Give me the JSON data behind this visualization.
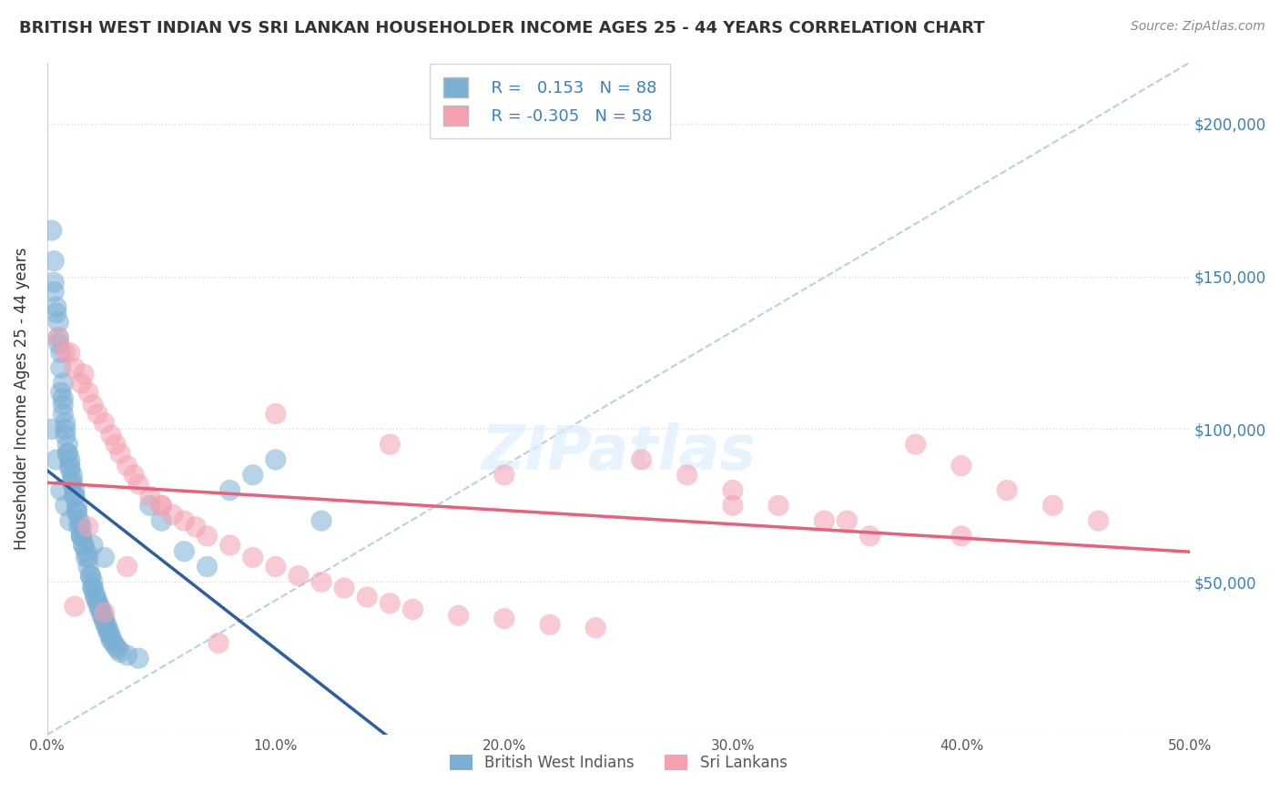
{
  "title": "BRITISH WEST INDIAN VS SRI LANKAN HOUSEHOLDER INCOME AGES 25 - 44 YEARS CORRELATION CHART",
  "source": "Source: ZipAtlas.com",
  "ylabel": "Householder Income Ages 25 - 44 years",
  "r_bwi": 0.153,
  "n_bwi": 88,
  "r_sri": -0.305,
  "n_sri": 58,
  "bwi_color": "#7BAFD4",
  "sri_color": "#F4A0B0",
  "bwi_line_color": "#2B5F9E",
  "sri_line_color": "#E8607A",
  "diag_line_color": "#AECCE4",
  "background_color": "#FFFFFF",
  "grid_color": "#DDDDDD",
  "xlim": [
    0.0,
    0.5
  ],
  "ylim": [
    0,
    220000
  ],
  "yticks": [
    0,
    50000,
    100000,
    150000,
    200000
  ],
  "ytick_labels": [
    "",
    "$50,000",
    "$100,000",
    "$150,000",
    "$200,000"
  ],
  "bwi_x": [
    0.002,
    0.003,
    0.003,
    0.004,
    0.005,
    0.005,
    0.006,
    0.006,
    0.007,
    0.007,
    0.007,
    0.008,
    0.008,
    0.009,
    0.009,
    0.01,
    0.01,
    0.011,
    0.011,
    0.012,
    0.012,
    0.013,
    0.013,
    0.014,
    0.015,
    0.015,
    0.016,
    0.017,
    0.018,
    0.019,
    0.02,
    0.02,
    0.021,
    0.022,
    0.023,
    0.024,
    0.025,
    0.026,
    0.027,
    0.028,
    0.003,
    0.004,
    0.005,
    0.006,
    0.007,
    0.008,
    0.009,
    0.01,
    0.011,
    0.012,
    0.013,
    0.014,
    0.015,
    0.016,
    0.017,
    0.018,
    0.019,
    0.02,
    0.021,
    0.022,
    0.023,
    0.024,
    0.025,
    0.026,
    0.027,
    0.028,
    0.029,
    0.03,
    0.031,
    0.032,
    0.035,
    0.04,
    0.045,
    0.05,
    0.06,
    0.07,
    0.08,
    0.09,
    0.1,
    0.12,
    0.002,
    0.004,
    0.006,
    0.008,
    0.01,
    0.015,
    0.02,
    0.025
  ],
  "bwi_y": [
    165000,
    155000,
    145000,
    140000,
    135000,
    128000,
    125000,
    120000,
    115000,
    110000,
    105000,
    102000,
    98000,
    95000,
    92000,
    90000,
    88000,
    85000,
    82000,
    80000,
    78000,
    75000,
    73000,
    70000,
    68000,
    65000,
    62000,
    60000,
    58000,
    52000,
    50000,
    48000,
    46000,
    44000,
    42000,
    40000,
    38000,
    36000,
    34000,
    32000,
    148000,
    138000,
    130000,
    112000,
    108000,
    100000,
    92000,
    87000,
    83000,
    78000,
    73000,
    68000,
    65000,
    62000,
    58000,
    55000,
    52000,
    48000,
    45000,
    43000,
    41000,
    39000,
    37000,
    35000,
    33000,
    31000,
    30000,
    29000,
    28000,
    27000,
    26000,
    25000,
    75000,
    70000,
    60000,
    55000,
    80000,
    85000,
    90000,
    70000,
    100000,
    90000,
    80000,
    75000,
    70000,
    65000,
    62000,
    58000
  ],
  "sri_x": [
    0.005,
    0.008,
    0.01,
    0.012,
    0.015,
    0.016,
    0.018,
    0.02,
    0.022,
    0.025,
    0.028,
    0.03,
    0.032,
    0.035,
    0.038,
    0.04,
    0.045,
    0.05,
    0.055,
    0.06,
    0.065,
    0.07,
    0.08,
    0.09,
    0.1,
    0.11,
    0.12,
    0.13,
    0.14,
    0.15,
    0.16,
    0.18,
    0.2,
    0.22,
    0.24,
    0.26,
    0.28,
    0.3,
    0.32,
    0.34,
    0.36,
    0.38,
    0.4,
    0.42,
    0.44,
    0.46,
    0.012,
    0.018,
    0.025,
    0.035,
    0.05,
    0.075,
    0.1,
    0.15,
    0.2,
    0.3,
    0.35,
    0.4
  ],
  "sri_y": [
    130000,
    125000,
    125000,
    120000,
    115000,
    118000,
    112000,
    108000,
    105000,
    102000,
    98000,
    95000,
    92000,
    88000,
    85000,
    82000,
    78000,
    75000,
    72000,
    70000,
    68000,
    65000,
    62000,
    58000,
    55000,
    52000,
    50000,
    48000,
    45000,
    43000,
    41000,
    39000,
    38000,
    36000,
    35000,
    90000,
    85000,
    80000,
    75000,
    70000,
    65000,
    95000,
    88000,
    80000,
    75000,
    70000,
    42000,
    68000,
    40000,
    55000,
    75000,
    30000,
    105000,
    95000,
    85000,
    75000,
    70000,
    65000
  ]
}
